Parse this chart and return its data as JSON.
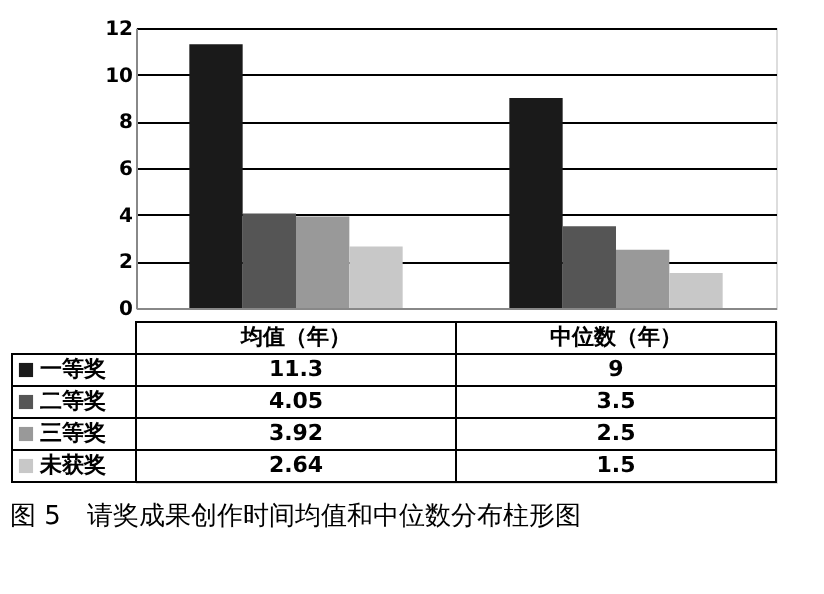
{
  "chart_data": {
    "type": "bar",
    "title": "图 5　请奖成果创作时间均值和中位数分布柱形图",
    "categories": [
      "均值（年）",
      "中位数（年）"
    ],
    "series": [
      {
        "name": "一等奖",
        "color": "#1a1a1a",
        "values": [
          11.3,
          9
        ]
      },
      {
        "name": "二等奖",
        "color": "#555555",
        "values": [
          4.05,
          3.5
        ]
      },
      {
        "name": "三等奖",
        "color": "#999999",
        "values": [
          3.92,
          2.5
        ]
      },
      {
        "name": "未获奖",
        "color": "#c8c8c8",
        "values": [
          2.64,
          1.5
        ]
      }
    ],
    "ylim": [
      0,
      12
    ],
    "yticks": [
      0,
      2,
      4,
      6,
      8,
      10,
      12
    ],
    "grid": "y",
    "legend": "bottom",
    "data_labels": true,
    "tick_labels": "y"
  }
}
